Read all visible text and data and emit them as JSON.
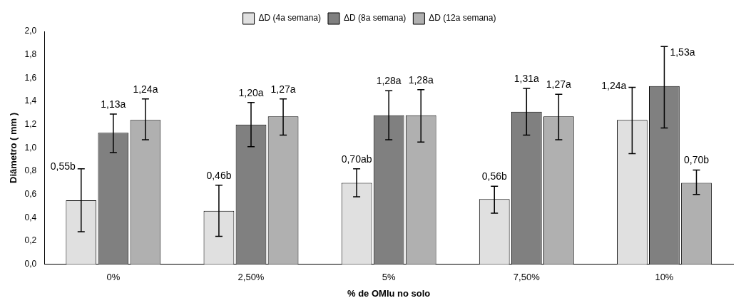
{
  "chart_data": {
    "type": "bar",
    "xlabel": "% de OMlu no solo",
    "ylabel": "Diâmetro ( mm )",
    "categories": [
      "0%",
      "2,50%",
      "5%",
      "7,50%",
      "10%"
    ],
    "series": [
      {
        "name": "ΔD (4a semana)",
        "color": "#e0e0e0",
        "values": [
          0.55,
          0.46,
          0.7,
          0.56,
          1.24
        ],
        "errors": [
          [
            0.28,
            0.82
          ],
          [
            0.24,
            0.68
          ],
          [
            0.58,
            0.82
          ],
          [
            0.44,
            0.67
          ],
          [
            0.95,
            1.52
          ]
        ],
        "value_labels": [
          "0,55b",
          "0,46b",
          "0,70ab",
          "0,56b",
          "1,24a"
        ]
      },
      {
        "name": "ΔD (8a semana)",
        "color": "#808080",
        "values": [
          1.13,
          1.2,
          1.28,
          1.31,
          1.53
        ],
        "errors": [
          [
            0.96,
            1.29
          ],
          [
            1.01,
            1.39
          ],
          [
            1.07,
            1.49
          ],
          [
            1.11,
            1.51
          ],
          [
            1.17,
            1.87
          ]
        ],
        "value_labels": [
          "1,13a",
          "1,20a",
          "1,28a",
          "1,31a",
          "1,53a"
        ]
      },
      {
        "name": "ΔD (12a semana)",
        "color": "#b0b0b0",
        "values": [
          1.24,
          1.27,
          1.28,
          1.27,
          0.7
        ],
        "errors": [
          [
            1.07,
            1.42
          ],
          [
            1.11,
            1.42
          ],
          [
            1.05,
            1.5
          ],
          [
            1.07,
            1.46
          ],
          [
            0.6,
            0.81
          ]
        ],
        "value_labels": [
          "1,24a",
          "1,27a",
          "1,28a",
          "1,27a",
          "0,70b"
        ]
      }
    ],
    "ylim": [
      0,
      2
    ],
    "yticks": [
      {
        "value": 0,
        "label": "0,0"
      },
      {
        "value": 0.2,
        "label": "0,2"
      },
      {
        "value": 0.4,
        "label": "0,4"
      },
      {
        "value": 0.6,
        "label": "0,6"
      },
      {
        "value": 0.8,
        "label": "0,8"
      },
      {
        "value": 1,
        "label": "1,0"
      },
      {
        "value": 1.2,
        "label": "1,2"
      },
      {
        "value": 1.4,
        "label": "1,4"
      },
      {
        "value": 1.6,
        "label": "1,6"
      },
      {
        "value": 1.8,
        "label": "1,8"
      },
      {
        "value": 2,
        "label": "2,0"
      }
    ],
    "grid": false,
    "legend": "top"
  }
}
